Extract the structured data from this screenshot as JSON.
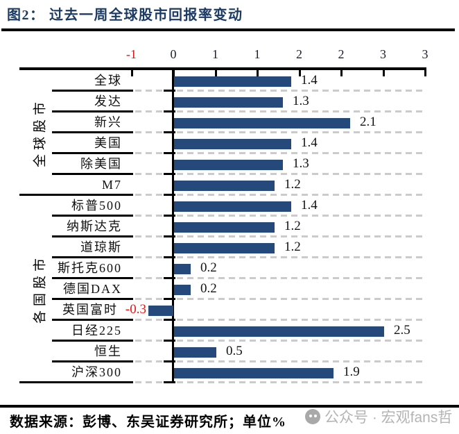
{
  "title": {
    "text": "图2： 过去一周全球股市回报率变动"
  },
  "footer": {
    "source": "数据来源：彭博、东吴证券研究所；单位%",
    "watermark": "公众号 · 宏观fans哲"
  },
  "colors": {
    "bar": "#26497C",
    "negative_text": "#EE1010",
    "title_text": "#1B3A64",
    "dashed_grid": "#CBCBCB",
    "watermark_text": "#B4B4B4"
  },
  "chart_data": {
    "type": "bar",
    "orientation": "horizontal",
    "title": "图2： 过去一周全球股市回报率变动",
    "xlabel": "",
    "ylabel": "",
    "unit": "%",
    "xlim": [
      -0.5,
      3.0
    ],
    "x_tick_values": [
      -0.5,
      0,
      0.5,
      1,
      1.5,
      2,
      2.5,
      3
    ],
    "x_tick_labels": [
      "-1",
      "0",
      "1",
      "1",
      "2",
      "2",
      "3",
      "3"
    ],
    "grid": "dashed horizontal row separators",
    "legend": "none",
    "groups": [
      {
        "name": "全球股市",
        "rows": [
          {
            "label": "全球",
            "value": 1.4
          },
          {
            "label": "发达",
            "value": 1.3
          },
          {
            "label": "新兴",
            "value": 2.1
          },
          {
            "label": "美国",
            "value": 1.4
          },
          {
            "label": "除美国",
            "value": 1.3
          },
          {
            "label": "M7",
            "value": 1.2
          }
        ]
      },
      {
        "name": "各国股市",
        "rows": [
          {
            "label": "标普500",
            "value": 1.4
          },
          {
            "label": "纳斯达克",
            "value": 1.2
          },
          {
            "label": "道琼斯",
            "value": 1.2
          },
          {
            "label": "斯托克600",
            "value": 0.2
          },
          {
            "label": "德国DAX",
            "value": 0.2
          },
          {
            "label": "英国富时",
            "value": -0.3
          },
          {
            "label": "日经225",
            "value": 2.5
          },
          {
            "label": "恒生",
            "value": 0.5
          },
          {
            "label": "沪深300",
            "value": 1.9
          }
        ]
      }
    ]
  }
}
